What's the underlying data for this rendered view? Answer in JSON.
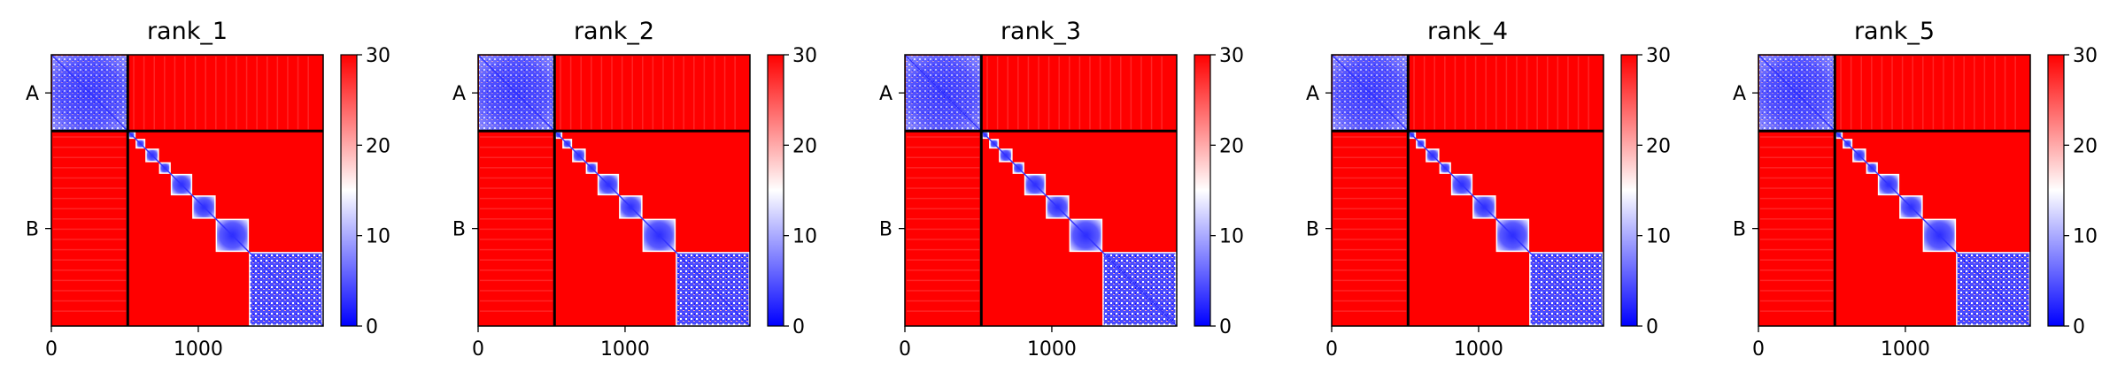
{
  "chart_data": [
    {
      "type": "heatmap",
      "title": "rank_1",
      "y_ticks": [
        "A",
        "B"
      ],
      "x_ticks": [
        "0",
        "1000"
      ],
      "xlim": [
        0,
        1850
      ],
      "boundary": 520,
      "colorbar": {
        "ticks": [
          "0",
          "10",
          "20",
          "30"
        ],
        "range": [
          0,
          30
        ],
        "colors": [
          "#0000ff",
          "#ffffff",
          "#ff0000"
        ]
      }
    },
    {
      "type": "heatmap",
      "title": "rank_2",
      "y_ticks": [
        "A",
        "B"
      ],
      "x_ticks": [
        "0",
        "1000"
      ],
      "xlim": [
        0,
        1850
      ],
      "boundary": 520,
      "colorbar": {
        "ticks": [
          "0",
          "10",
          "20",
          "30"
        ],
        "range": [
          0,
          30
        ],
        "colors": [
          "#0000ff",
          "#ffffff",
          "#ff0000"
        ]
      }
    },
    {
      "type": "heatmap",
      "title": "rank_3",
      "y_ticks": [
        "A",
        "B"
      ],
      "x_ticks": [
        "0",
        "1000"
      ],
      "xlim": [
        0,
        1850
      ],
      "boundary": 520,
      "colorbar": {
        "ticks": [
          "0",
          "10",
          "20",
          "30"
        ],
        "range": [
          0,
          30
        ],
        "colors": [
          "#0000ff",
          "#ffffff",
          "#ff0000"
        ]
      }
    },
    {
      "type": "heatmap",
      "title": "rank_4",
      "y_ticks": [
        "A",
        "B"
      ],
      "x_ticks": [
        "0",
        "1000"
      ],
      "xlim": [
        0,
        1850
      ],
      "boundary": 520,
      "colorbar": {
        "ticks": [
          "0",
          "10",
          "20",
          "30"
        ],
        "range": [
          0,
          30
        ],
        "colors": [
          "#0000ff",
          "#ffffff",
          "#ff0000"
        ]
      }
    },
    {
      "type": "heatmap",
      "title": "rank_5",
      "y_ticks": [
        "A",
        "B"
      ],
      "x_ticks": [
        "0",
        "1000"
      ],
      "xlim": [
        0,
        1850
      ],
      "boundary": 520,
      "colorbar": {
        "ticks": [
          "0",
          "10",
          "20",
          "30"
        ],
        "range": [
          0,
          30
        ],
        "colors": [
          "#0000ff",
          "#ffffff",
          "#ff0000"
        ]
      }
    }
  ]
}
